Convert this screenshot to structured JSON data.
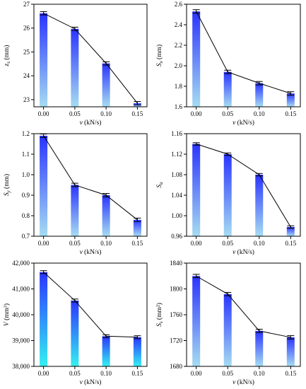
{
  "colors": {
    "bar_top": "#2a34ff",
    "bar_bottom": "#a6dcf2",
    "bar_bottom_cyan": "#35f0f2",
    "line": "#000000",
    "error_bar": "#000000"
  },
  "chart_data": [
    {
      "id": "zs",
      "type": "bar",
      "categories": [
        "0.00",
        "0.05",
        "0.10",
        "0.15"
      ],
      "values": [
        26.62,
        25.97,
        24.52,
        22.85
      ],
      "errors": [
        0.04,
        0.04,
        0.04,
        0.04
      ],
      "overlay": "line",
      "ylabel": "z_s (mm)",
      "xlabel": "v (kN/s)",
      "ylim": [
        22.7,
        27
      ],
      "yticks": [
        23,
        24,
        25,
        26,
        27
      ],
      "ytick_labels": [
        "23",
        "24",
        "25",
        "26",
        "27"
      ],
      "xtick_labels": [
        "0.00",
        "0.05",
        "0.10",
        "0.15"
      ],
      "gradient": "blue-light"
    },
    {
      "id": "sx",
      "type": "bar",
      "categories": [
        "0.00",
        "0.05",
        "0.10",
        "0.15"
      ],
      "values": [
        2.53,
        1.94,
        1.83,
        1.73
      ],
      "errors": [
        0.01,
        0.01,
        0.01,
        0.01
      ],
      "overlay": "line",
      "ylabel": "S_x (mm)",
      "xlabel": "v (kN/s)",
      "ylim": [
        1.6,
        2.6
      ],
      "yticks": [
        1.6,
        1.8,
        2.0,
        2.2,
        2.4,
        2.6
      ],
      "ytick_labels": [
        "1.6",
        "1.8",
        "2.0",
        "2.2",
        "2.4",
        "2.6"
      ],
      "xtick_labels": [
        "0.00",
        "0.05",
        "0.10",
        "0.15"
      ],
      "gradient": "blue-light"
    },
    {
      "id": "sy",
      "type": "bar",
      "categories": [
        "0.00",
        "0.05",
        "0.10",
        "0.15"
      ],
      "values": [
        1.19,
        0.95,
        0.9,
        0.78
      ],
      "errors": [
        0.005,
        0.005,
        0.005,
        0.005
      ],
      "overlay": "line",
      "ylabel": "S_y (mm)",
      "xlabel": "v (kN/s)",
      "ylim": [
        0.7,
        1.2
      ],
      "yticks": [
        0.7,
        0.8,
        0.9,
        1.0,
        1.1,
        1.2
      ],
      "ytick_labels": [
        "0.7",
        "0.8",
        "0.9",
        "1.0",
        "1.1",
        "1.2"
      ],
      "xtick_labels": [
        "0.00",
        "0.05",
        "0.10",
        "0.15"
      ],
      "gradient": "blue-light"
    },
    {
      "id": "sa",
      "type": "bar",
      "categories": [
        "0.00",
        "0.05",
        "0.10",
        "0.15"
      ],
      "values": [
        1.14,
        1.12,
        1.08,
        0.978
      ],
      "errors": [
        0.001,
        0.001,
        0.001,
        0.001
      ],
      "overlay": "line",
      "ylabel": "S_a",
      "xlabel": "v (kN/s)",
      "ylim": [
        0.96,
        1.16
      ],
      "yticks": [
        0.96,
        1.0,
        1.04,
        1.08,
        1.12,
        1.16
      ],
      "ytick_labels": [
        "0.96",
        "1.00",
        "1.04",
        "1.08",
        "1.12",
        "1.16"
      ],
      "xtick_labels": [
        "0.00",
        "0.05",
        "0.10",
        "0.15"
      ],
      "gradient": "blue-light"
    },
    {
      "id": "volume",
      "type": "bar",
      "categories": [
        "0.00",
        "0.05",
        "0.10",
        "0.15"
      ],
      "values": [
        41650,
        40550,
        39170,
        39130
      ],
      "errors": [
        30,
        30,
        30,
        30
      ],
      "overlay": "line",
      "ylabel": "V (mm³)",
      "xlabel": "v (kN/s)",
      "ylim": [
        38000,
        42000
      ],
      "yticks": [
        38000,
        39000,
        40000,
        41000,
        42000
      ],
      "ytick_labels": [
        "38,000",
        "39,000",
        "40,000",
        "41,000",
        "42,000"
      ],
      "xtick_labels": [
        "0.00",
        "0.05",
        "0.10",
        "0.15"
      ],
      "gradient": "blue-cyan"
    },
    {
      "id": "area",
      "type": "bar",
      "categories": [
        "0.00",
        "0.05",
        "0.10",
        "0.15"
      ],
      "values": [
        1820,
        1792,
        1735,
        1725
      ],
      "errors": [
        1.5,
        1.5,
        1.5,
        1.5
      ],
      "overlay": "line",
      "ylabel": "S_s (mm²)",
      "xlabel": "v (kN/s)",
      "ylim": [
        1680,
        1840
      ],
      "yticks": [
        1680,
        1720,
        1760,
        1800,
        1840
      ],
      "ytick_labels": [
        "1680",
        "1720",
        "1760",
        "1800",
        "1840"
      ],
      "xtick_labels": [
        "0.00",
        "0.05",
        "0.10",
        "0.15"
      ],
      "gradient": "blue-light"
    }
  ]
}
